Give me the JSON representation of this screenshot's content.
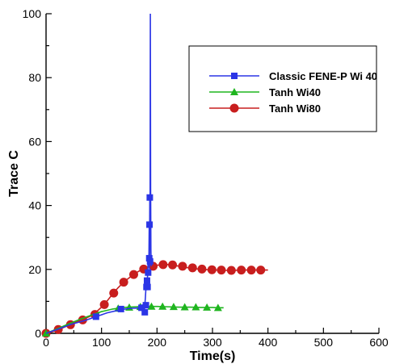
{
  "chart_data": {
    "type": "line",
    "xlabel": "Time(s)",
    "ylabel": "Trace C",
    "xlim": [
      0,
      600
    ],
    "ylim": [
      0,
      100
    ],
    "xticks": [
      0,
      100,
      200,
      300,
      400,
      500,
      600
    ],
    "yticks": [
      0,
      20,
      40,
      60,
      80,
      100
    ],
    "grid": false,
    "legend_position": "top-right",
    "series": [
      {
        "name": "Classic FENE-P Wi 40",
        "color": "#2b35e6",
        "marker": "square",
        "x": [
          0,
          20,
          45,
          70,
          90,
          110,
          135,
          150,
          165,
          172,
          175,
          176,
          177,
          178,
          179,
          180,
          181,
          182,
          183,
          184,
          185,
          185.5,
          186,
          186.5,
          187,
          187.5,
          188,
          188.5,
          189,
          189.5,
          190
        ],
        "y": [
          0,
          1.2,
          2.8,
          4.0,
          5.2,
          6.4,
          7.4,
          7.8,
          7.9,
          8.4,
          9.0,
          8.0,
          6.2,
          8.8,
          11.0,
          14.0,
          17.0,
          15.0,
          18.0,
          23.0,
          21.0,
          25.0,
          34.0,
          20.0,
          42.5,
          30.0,
          100,
          45.0,
          26.0,
          22.0,
          21.0
        ],
        "marker_x": [
          90,
          135,
          172,
          178,
          180,
          181,
          182,
          183,
          184,
          186,
          186.5,
          187,
          187.5
        ],
        "marker_y": [
          5.2,
          7.6,
          8.0,
          6.6,
          8.8,
          14.5,
          16.5,
          14.5,
          19.0,
          23.5,
          34.0,
          42.5,
          22.5
        ]
      },
      {
        "name": "Tanh Wi40",
        "color": "#1fb51f",
        "marker": "triangle",
        "x": [
          0,
          20,
          40,
          60,
          80,
          100,
          120,
          140,
          160,
          180,
          200,
          220,
          240,
          260,
          280,
          300,
          310,
          320
        ],
        "y": [
          0,
          1.4,
          2.9,
          4.3,
          5.6,
          6.8,
          7.6,
          8.1,
          8.3,
          8.4,
          8.4,
          8.3,
          8.2,
          8.2,
          8.1,
          8.1,
          8.0,
          8.0
        ],
        "marker_x": [
          0,
          130,
          150,
          170,
          190,
          210,
          230,
          250,
          270,
          290,
          310
        ],
        "marker_y": [
          0,
          7.8,
          8.1,
          8.3,
          8.4,
          8.4,
          8.3,
          8.2,
          8.2,
          8.1,
          8.0
        ]
      },
      {
        "name": "Tanh Wi80",
        "color": "#c81e1e",
        "marker": "circle",
        "x": [
          0,
          10,
          20,
          30,
          40,
          50,
          60,
          70,
          80,
          90,
          100,
          110,
          120,
          130,
          140,
          150,
          160,
          170,
          180,
          190,
          200,
          210,
          220,
          230,
          240,
          250,
          260,
          270,
          280,
          290,
          300,
          310,
          320,
          330,
          340,
          350,
          360,
          370,
          380,
          390,
          400
        ],
        "y": [
          0,
          0.4,
          1.0,
          1.7,
          2.5,
          3.2,
          3.9,
          4.6,
          5.4,
          6.6,
          8.2,
          10.1,
          12.3,
          14.3,
          16.0,
          17.4,
          18.7,
          19.7,
          20.5,
          21.0,
          21.3,
          21.5,
          21.5,
          21.3,
          21.0,
          20.7,
          20.4,
          20.2,
          20.0,
          19.9,
          19.8,
          19.8,
          19.7,
          19.7,
          19.7,
          19.8,
          19.8,
          19.8,
          19.8,
          19.8,
          19.8
        ],
        "marker_x": [
          0,
          22,
          44,
          66,
          88,
          105,
          122,
          140,
          158,
          176,
          193,
          211,
          228,
          246,
          264,
          281,
          299,
          316,
          334,
          352,
          370,
          387
        ],
        "marker_y": [
          0,
          1.2,
          2.7,
          4.2,
          5.9,
          9.0,
          12.6,
          16.0,
          18.4,
          20.1,
          21.0,
          21.5,
          21.4,
          21.0,
          20.5,
          20.1,
          19.9,
          19.8,
          19.7,
          19.8,
          19.8,
          19.8
        ]
      }
    ]
  }
}
